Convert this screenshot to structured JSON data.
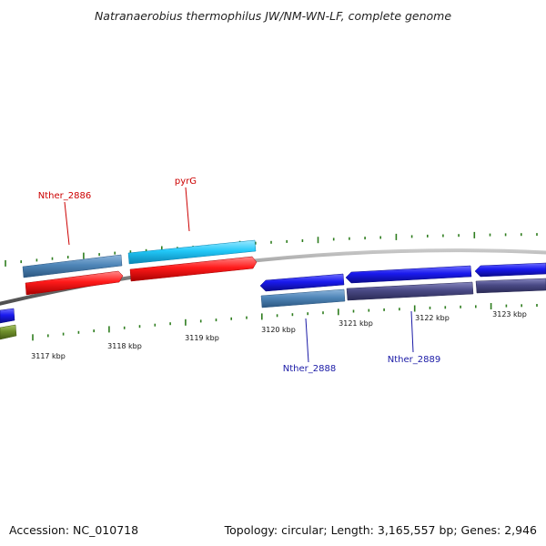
{
  "title": "Natranaerobius thermophilus JW/NM-WN-LF, complete genome",
  "footer": {
    "accession": "Accession: NC_010718",
    "stats": "Topology: circular; Length: 3,165,557 bp; Genes: 2,946"
  },
  "colors": {
    "backbone": "#8a8a8a",
    "tick": "#2e7d1e",
    "label_red": "#cc0000",
    "label_blue": "#1a1aa6",
    "gene_red": "#ee0000",
    "gene_blue": "#1414e6",
    "gene_cyan": "#1cc6f6",
    "gene_steel": "#4f86b8",
    "gene_slate": "#45457e",
    "gene_olive": "#6f8f2a"
  },
  "ticks": {
    "labels": [
      "3117 kbp",
      "3118 kbp",
      "3119 kbp",
      "3120 kbp",
      "3121 kbp",
      "3122 kbp",
      "3123 kbp"
    ]
  },
  "genes": [
    {
      "name": "Nther_2886",
      "color": "label_red"
    },
    {
      "name": "pyrG",
      "color": "label_red"
    },
    {
      "name": "Nther_2888",
      "color": "label_blue"
    },
    {
      "name": "Nther_2889",
      "color": "label_blue"
    }
  ]
}
